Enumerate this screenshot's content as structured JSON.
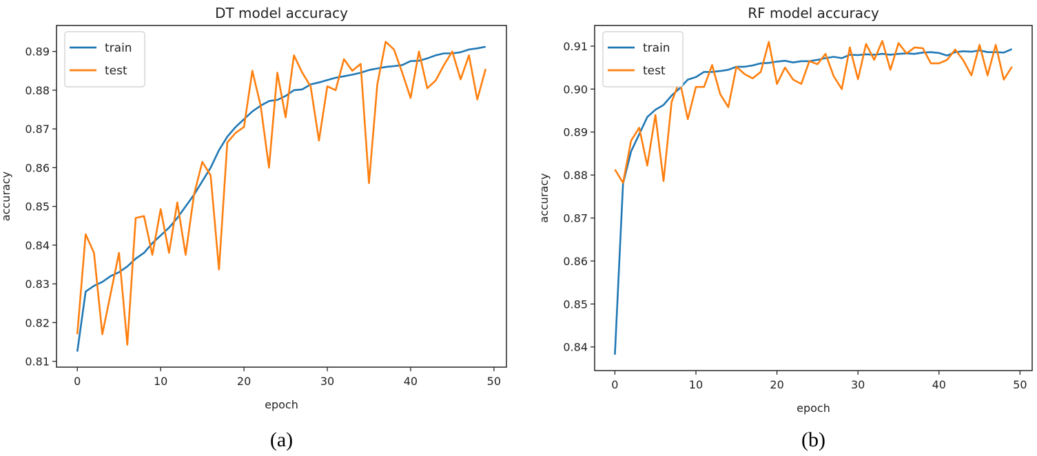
{
  "chart_data": [
    {
      "type": "line",
      "title": "DT model accuracy",
      "xlabel": "epoch",
      "ylabel": "accuracy",
      "caption": "(a)",
      "xlim": [
        -2.5,
        51.5
      ],
      "ylim": [
        0.8085,
        0.8967
      ],
      "xticks": [
        0,
        10,
        20,
        30,
        40,
        50
      ],
      "yticks": [
        0.81,
        0.82,
        0.83,
        0.84,
        0.85,
        0.86,
        0.87,
        0.88,
        0.89
      ],
      "ytick_decimals": 2,
      "grid": false,
      "legend": "top-left",
      "x": [
        0,
        1,
        2,
        3,
        4,
        5,
        6,
        7,
        8,
        9,
        10,
        11,
        12,
        13,
        14,
        15,
        16,
        17,
        18,
        19,
        20,
        21,
        22,
        23,
        24,
        25,
        26,
        27,
        28,
        29,
        30,
        31,
        32,
        33,
        34,
        35,
        36,
        37,
        38,
        39,
        40,
        41,
        42,
        43,
        44,
        45,
        46,
        47,
        48,
        49
      ],
      "series": [
        {
          "name": "train",
          "color": "#1f77b4",
          "values": [
            0.8125,
            0.828,
            0.8295,
            0.8305,
            0.832,
            0.833,
            0.8345,
            0.8365,
            0.838,
            0.8405,
            0.8425,
            0.8445,
            0.847,
            0.85,
            0.853,
            0.8565,
            0.86,
            0.8645,
            0.868,
            0.8705,
            0.8725,
            0.8745,
            0.876,
            0.8772,
            0.8775,
            0.8785,
            0.88,
            0.8802,
            0.8815,
            0.882,
            0.8826,
            0.8832,
            0.8836,
            0.884,
            0.8845,
            0.8852,
            0.8856,
            0.886,
            0.8862,
            0.8865,
            0.8875,
            0.8876,
            0.8882,
            0.889,
            0.8895,
            0.8895,
            0.8898,
            0.8905,
            0.8908,
            0.8912
          ]
        },
        {
          "name": "test",
          "color": "#ff7f0e",
          "values": [
            0.817,
            0.8428,
            0.838,
            0.817,
            0.8275,
            0.838,
            0.8143,
            0.847,
            0.8475,
            0.8375,
            0.8493,
            0.838,
            0.851,
            0.8375,
            0.853,
            0.8615,
            0.858,
            0.8337,
            0.8665,
            0.869,
            0.8705,
            0.885,
            0.876,
            0.86,
            0.8845,
            0.873,
            0.889,
            0.8845,
            0.881,
            0.867,
            0.881,
            0.88,
            0.888,
            0.885,
            0.8868,
            0.856,
            0.8815,
            0.8925,
            0.8905,
            0.8845,
            0.878,
            0.89,
            0.8805,
            0.8825,
            0.8865,
            0.89,
            0.8828,
            0.889,
            0.8776,
            0.8855
          ]
        }
      ]
    },
    {
      "type": "line",
      "title": "RF model accuracy",
      "xlabel": "epoch",
      "ylabel": "accuracy",
      "caption": "(b)",
      "xlim": [
        -2.5,
        51.5
      ],
      "ylim": [
        0.8345,
        0.9148
      ],
      "xticks": [
        0,
        10,
        20,
        30,
        40,
        50
      ],
      "yticks": [
        0.84,
        0.85,
        0.86,
        0.87,
        0.88,
        0.89,
        0.9,
        0.91
      ],
      "ytick_decimals": 2,
      "grid": false,
      "legend": "top-left",
      "x": [
        0,
        1,
        2,
        3,
        4,
        5,
        6,
        7,
        8,
        9,
        10,
        11,
        12,
        13,
        14,
        15,
        16,
        17,
        18,
        19,
        20,
        21,
        22,
        23,
        24,
        25,
        26,
        27,
        28,
        29,
        30,
        31,
        32,
        33,
        34,
        35,
        36,
        37,
        38,
        39,
        40,
        41,
        42,
        43,
        44,
        45,
        46,
        47,
        48,
        49
      ],
      "series": [
        {
          "name": "train",
          "color": "#1f77b4",
          "values": [
            0.8382,
            0.878,
            0.8855,
            0.8895,
            0.8935,
            0.8952,
            0.8963,
            0.8985,
            0.9002,
            0.9022,
            0.9028,
            0.904,
            0.904,
            0.9042,
            0.9045,
            0.9052,
            0.9052,
            0.9055,
            0.906,
            0.9061,
            0.9064,
            0.9066,
            0.9062,
            0.9065,
            0.9065,
            0.9068,
            0.9072,
            0.9075,
            0.9072,
            0.908,
            0.9079,
            0.9081,
            0.908,
            0.9082,
            0.908,
            0.9082,
            0.9083,
            0.9082,
            0.9085,
            0.9086,
            0.9084,
            0.9078,
            0.9086,
            0.9088,
            0.9087,
            0.909,
            0.9086,
            0.9086,
            0.9085,
            0.9093
          ]
        },
        {
          "name": "test",
          "color": "#ff7f0e",
          "values": [
            0.8813,
            0.8782,
            0.888,
            0.891,
            0.8822,
            0.894,
            0.8786,
            0.897,
            0.902,
            0.893,
            0.9005,
            0.9005,
            0.9056,
            0.8988,
            0.8958,
            0.9052,
            0.9035,
            0.9025,
            0.904,
            0.911,
            0.9012,
            0.905,
            0.9022,
            0.9012,
            0.9065,
            0.9058,
            0.9082,
            0.903,
            0.9,
            0.9097,
            0.9023,
            0.9105,
            0.9068,
            0.9112,
            0.9045,
            0.9107,
            0.9083,
            0.9097,
            0.9095,
            0.906,
            0.906,
            0.9068,
            0.9092,
            0.9067,
            0.9032,
            0.9103,
            0.9032,
            0.9103,
            0.9022,
            0.9052
          ]
        }
      ]
    }
  ]
}
